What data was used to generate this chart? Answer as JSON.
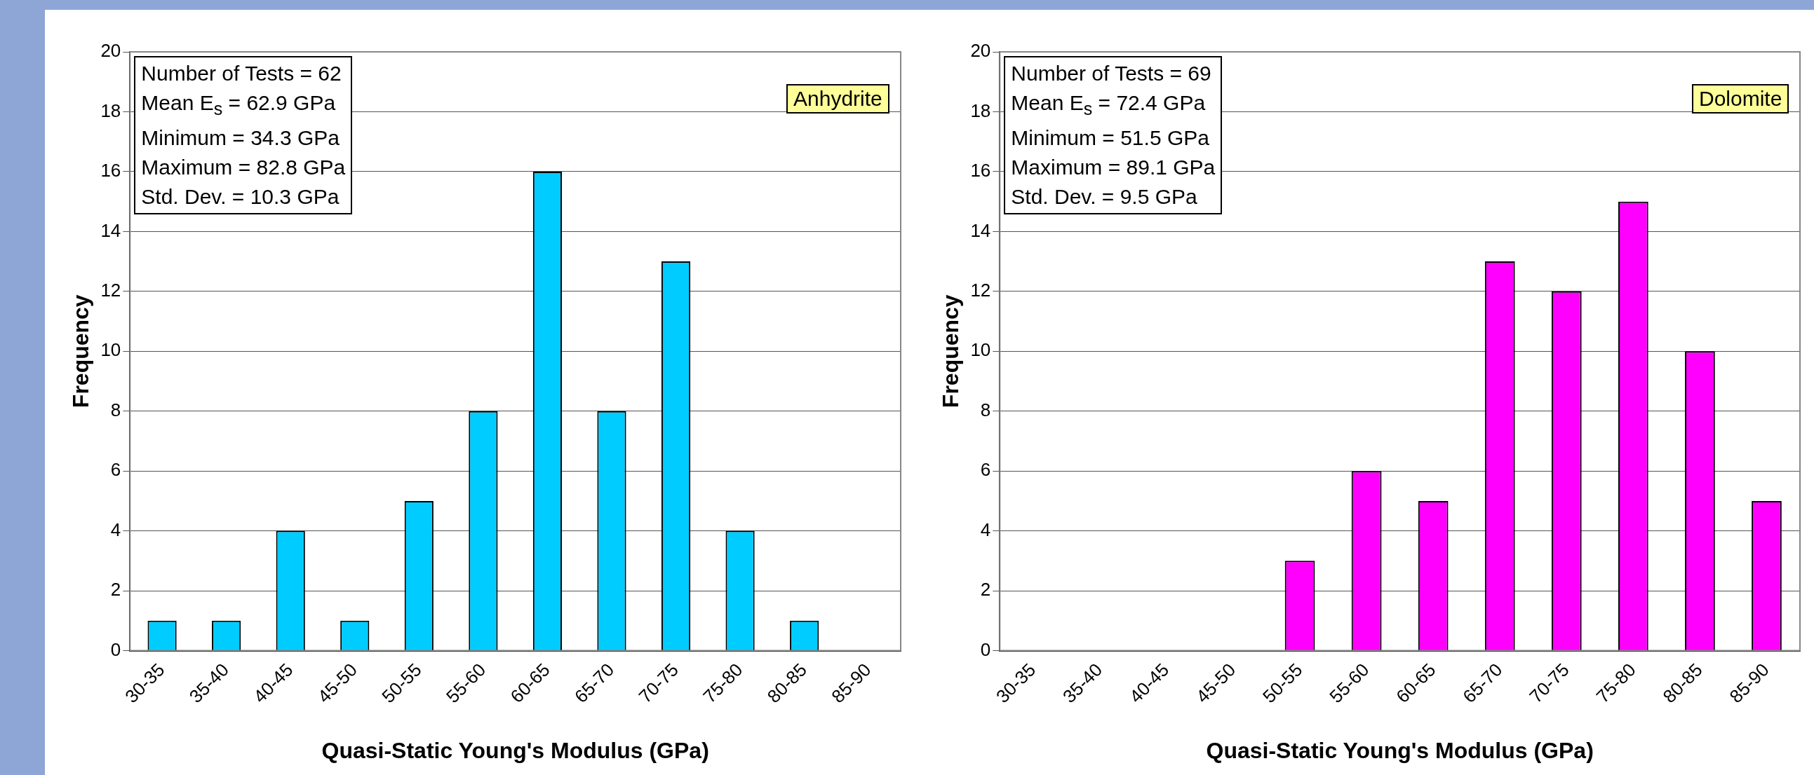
{
  "chart_data": [
    {
      "type": "bar",
      "title": "Anhydrite",
      "xlabel": "Quasi-Static Young's Modulus (GPa)",
      "ylabel": "Frequency",
      "categories": [
        "30-35",
        "35-40",
        "40-45",
        "45-50",
        "50-55",
        "55-60",
        "60-65",
        "65-70",
        "70-75",
        "75-80",
        "80-85",
        "85-90"
      ],
      "values": [
        1,
        1,
        4,
        1,
        5,
        8,
        16,
        8,
        13,
        4,
        1,
        0
      ],
      "color": "#00ccff",
      "ylim": [
        0,
        20
      ],
      "yticks": [
        0,
        2,
        4,
        6,
        8,
        10,
        12,
        14,
        16,
        18,
        20
      ],
      "grid": "y",
      "annotations": [
        "Number of Tests = 62",
        "Mean E$_{s}$ = 62.9 GPa",
        "Minimum = 34.3 GPa",
        "Maximum = 82.8 GPa",
        "Std. Dev. = 10.3 GPa"
      ]
    },
    {
      "type": "bar",
      "title": "Dolomite",
      "xlabel": "Quasi-Static Young's Modulus (GPa)",
      "ylabel": "Frequency",
      "categories": [
        "30-35",
        "35-40",
        "40-45",
        "45-50",
        "50-55",
        "55-60",
        "60-65",
        "65-70",
        "70-75",
        "75-80",
        "80-85",
        "85-90"
      ],
      "values": [
        0,
        0,
        0,
        0,
        3,
        6,
        5,
        13,
        12,
        15,
        10,
        5
      ],
      "color": "#ff00ff",
      "ylim": [
        0,
        20
      ],
      "yticks": [
        0,
        2,
        4,
        6,
        8,
        10,
        12,
        14,
        16,
        18,
        20
      ],
      "grid": "y",
      "annotations": [
        "Number of Tests = 69",
        "Mean E$_{s}$ = 72.4 GPa",
        "Minimum = 51.5 GPa",
        "Maximum = 89.1 GPa",
        "Std. Dev. = 9.5 GPa"
      ]
    }
  ]
}
